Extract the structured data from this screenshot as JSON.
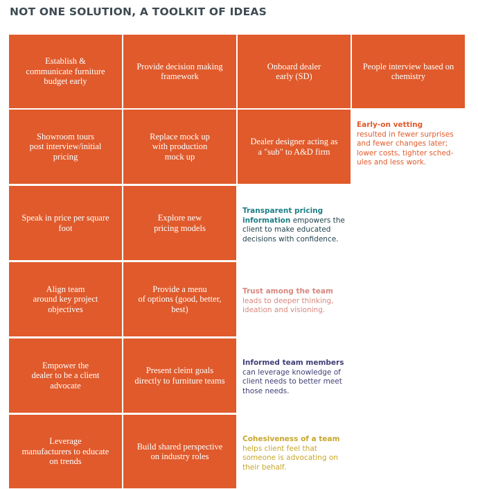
{
  "title": "NOT ONE SOLUTION, A TOOLKIT OF IDEAS",
  "colors": {
    "tile": "#e05a2b",
    "title": "#3d4a52",
    "note_orange": "#e05a2b",
    "note_teal": "#1d7e85",
    "note_pink": "#d7877e",
    "note_navy": "#3f3e75",
    "note_gold": "#c8a62c"
  },
  "rows": [
    [
      "Establish &\ncommunicate furniture\nbudget early",
      "Provide decision making\nframework",
      "Onboard dealer\nearly (SD)",
      "People interview based on\nchemistry"
    ],
    [
      "Showroom tours\npost interview/initial\npricing",
      "Replace mock up\nwith production\nmock up",
      "Dealer designer  acting as\na \"sub\" to A&D firm"
    ],
    [
      "Speak in price per square\nfoot",
      "Explore new\npricing models"
    ],
    [
      "Align team\naround key project\nobjectives",
      "Provide a menu\nof options (good, better,\nbest)"
    ],
    [
      "Empower the\ndealer to be a client\nadvocate",
      "Present cleint goals\ndirectly to furniture teams"
    ],
    [
      "Leverage\nmanufacturers to educate\non trends",
      "Build shared perspective\non industry roles"
    ]
  ],
  "notes": {
    "vetting": {
      "head": "Early-on vetting",
      "body": "resulted in fewer surprises\nand fewer changes later;\nlower costs, tighter sched-\nules and less work."
    },
    "pricing": {
      "head": "Transparent pricing\ninformation",
      "body": " empowers the\nclient to make educated\ndecisions with confidence."
    },
    "trust": {
      "head": "Trust among the team",
      "body": "leads to deeper thinking,\nideation and visioning."
    },
    "informed": {
      "head": "Informed team members",
      "body": "can leverage knowledge of\nclient needs to better meet\nthose needs."
    },
    "cohesive": {
      "head": "Cohesiveness of a team",
      "body": "helps client feel that\nsomeone is advocating on\ntheir behalf."
    }
  }
}
